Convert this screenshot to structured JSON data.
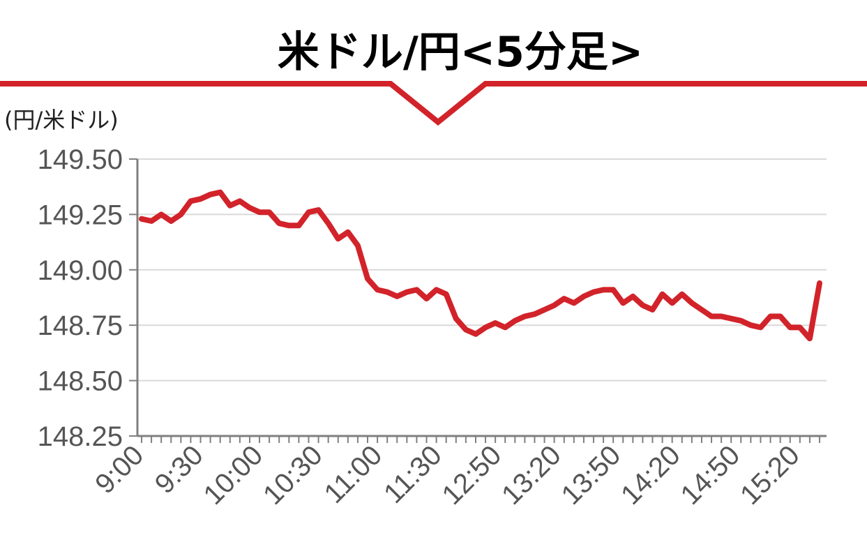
{
  "chart_data": {
    "type": "line",
    "title": "米ドル/円<5分足>",
    "ylabel": "(円/米ドル)",
    "ylim": [
      148.25,
      149.5
    ],
    "yticks": [
      "149.50",
      "149.25",
      "149.00",
      "148.75",
      "148.50",
      "148.25"
    ],
    "xtick_labels": [
      "9:00",
      "9:30",
      "10:00",
      "10:30",
      "11:00",
      "11:30",
      "12:50",
      "13:20",
      "13:50",
      "14:20",
      "14:50",
      "15:20"
    ],
    "grid": true,
    "series": [
      {
        "color": "#d2232a",
        "values": [
          149.23,
          149.22,
          149.25,
          149.22,
          149.25,
          149.31,
          149.32,
          149.34,
          149.35,
          149.29,
          149.31,
          149.28,
          149.26,
          149.26,
          149.21,
          149.2,
          149.2,
          149.26,
          149.27,
          149.21,
          149.14,
          149.17,
          149.11,
          148.96,
          148.91,
          148.9,
          148.88,
          148.9,
          148.91,
          148.87,
          148.91,
          148.89,
          148.78,
          148.73,
          148.71,
          148.74,
          148.76,
          148.74,
          148.77,
          148.79,
          148.8,
          148.82,
          148.84,
          148.87,
          148.85,
          148.88,
          148.9,
          148.91,
          148.91,
          148.85,
          148.88,
          148.84,
          148.82,
          148.89,
          148.85,
          148.89,
          148.85,
          148.82,
          148.79,
          148.79,
          148.78,
          148.77,
          148.75,
          148.74,
          148.79,
          148.79,
          148.74,
          148.74,
          148.69,
          148.94
        ]
      }
    ]
  },
  "colors": {
    "line": "#d2232a",
    "banner": "#d2232a",
    "grid": "#d9d9d9",
    "axis": "#7f7f7f"
  }
}
